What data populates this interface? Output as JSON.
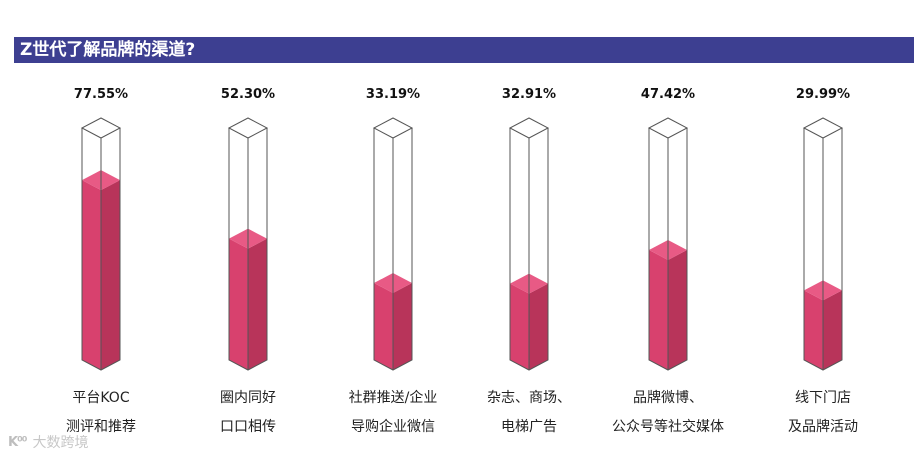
{
  "title": "Z世代了解品牌的渠道?",
  "watermark": {
    "logo": "K⁰⁰",
    "text": "大数跨境"
  },
  "colors": {
    "title_bar": "#3d3f91",
    "fill_front": "#d8416e",
    "fill_side": "#b8345a",
    "fill_top": "#e85a85",
    "outline": "#555555"
  },
  "chart_data": {
    "type": "bar",
    "title": "Z世代了解品牌的渠道?",
    "categories": [
      [
        "平台KOC",
        "测评和推荐"
      ],
      [
        "圈内同好",
        "口口相传"
      ],
      [
        "社群推送/企业",
        "导购企业微信"
      ],
      [
        "杂志、商场、",
        "电梯广告"
      ],
      [
        "品牌微博、",
        "公众号等社交媒体"
      ],
      [
        "线下门店",
        "及品牌活动"
      ]
    ],
    "values": [
      77.55,
      52.3,
      33.19,
      32.91,
      47.42,
      29.99
    ],
    "value_labels": [
      "77.55%",
      "52.30%",
      "33.19%",
      "32.91%",
      "47.42%",
      "29.99%"
    ],
    "ylim": [
      0,
      100
    ],
    "unit": "%"
  }
}
